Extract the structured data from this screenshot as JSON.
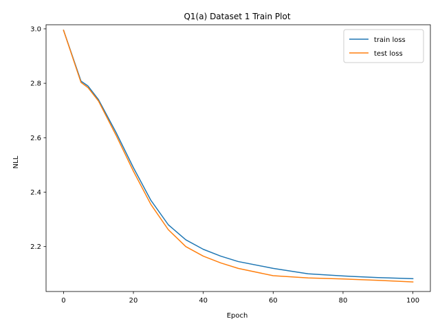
{
  "chart_data": {
    "type": "line",
    "title": "Q1(a) Dataset 1 Train Plot",
    "xlabel": "Epoch",
    "ylabel": "NLL",
    "xlim": [
      -5,
      105
    ],
    "ylim": [
      2.035,
      3.015
    ],
    "x_ticks": [
      0,
      20,
      40,
      60,
      80,
      100
    ],
    "y_ticks": [
      2.2,
      2.4,
      2.6,
      2.8,
      3.0
    ],
    "x_tick_labels": [
      "0",
      "20",
      "40",
      "60",
      "80",
      "100"
    ],
    "y_tick_labels": [
      "2.2",
      "2.4",
      "2.6",
      "2.8",
      "3.0"
    ],
    "grid": false,
    "legend_position": "top-right",
    "x": [
      0,
      5,
      7,
      10,
      15,
      20,
      25,
      30,
      35,
      40,
      45,
      50,
      60,
      70,
      80,
      90,
      100
    ],
    "series": [
      {
        "name": "train loss",
        "color": "#1f77b4",
        "values": [
          2.995,
          2.808,
          2.79,
          2.74,
          2.62,
          2.49,
          2.37,
          2.28,
          2.225,
          2.19,
          2.165,
          2.145,
          2.12,
          2.1,
          2.092,
          2.086,
          2.082
        ]
      },
      {
        "name": "test loss",
        "color": "#ff7f0e",
        "values": [
          2.995,
          2.803,
          2.784,
          2.735,
          2.61,
          2.477,
          2.355,
          2.262,
          2.2,
          2.165,
          2.14,
          2.12,
          2.093,
          2.085,
          2.081,
          2.076,
          2.07
        ]
      }
    ]
  }
}
